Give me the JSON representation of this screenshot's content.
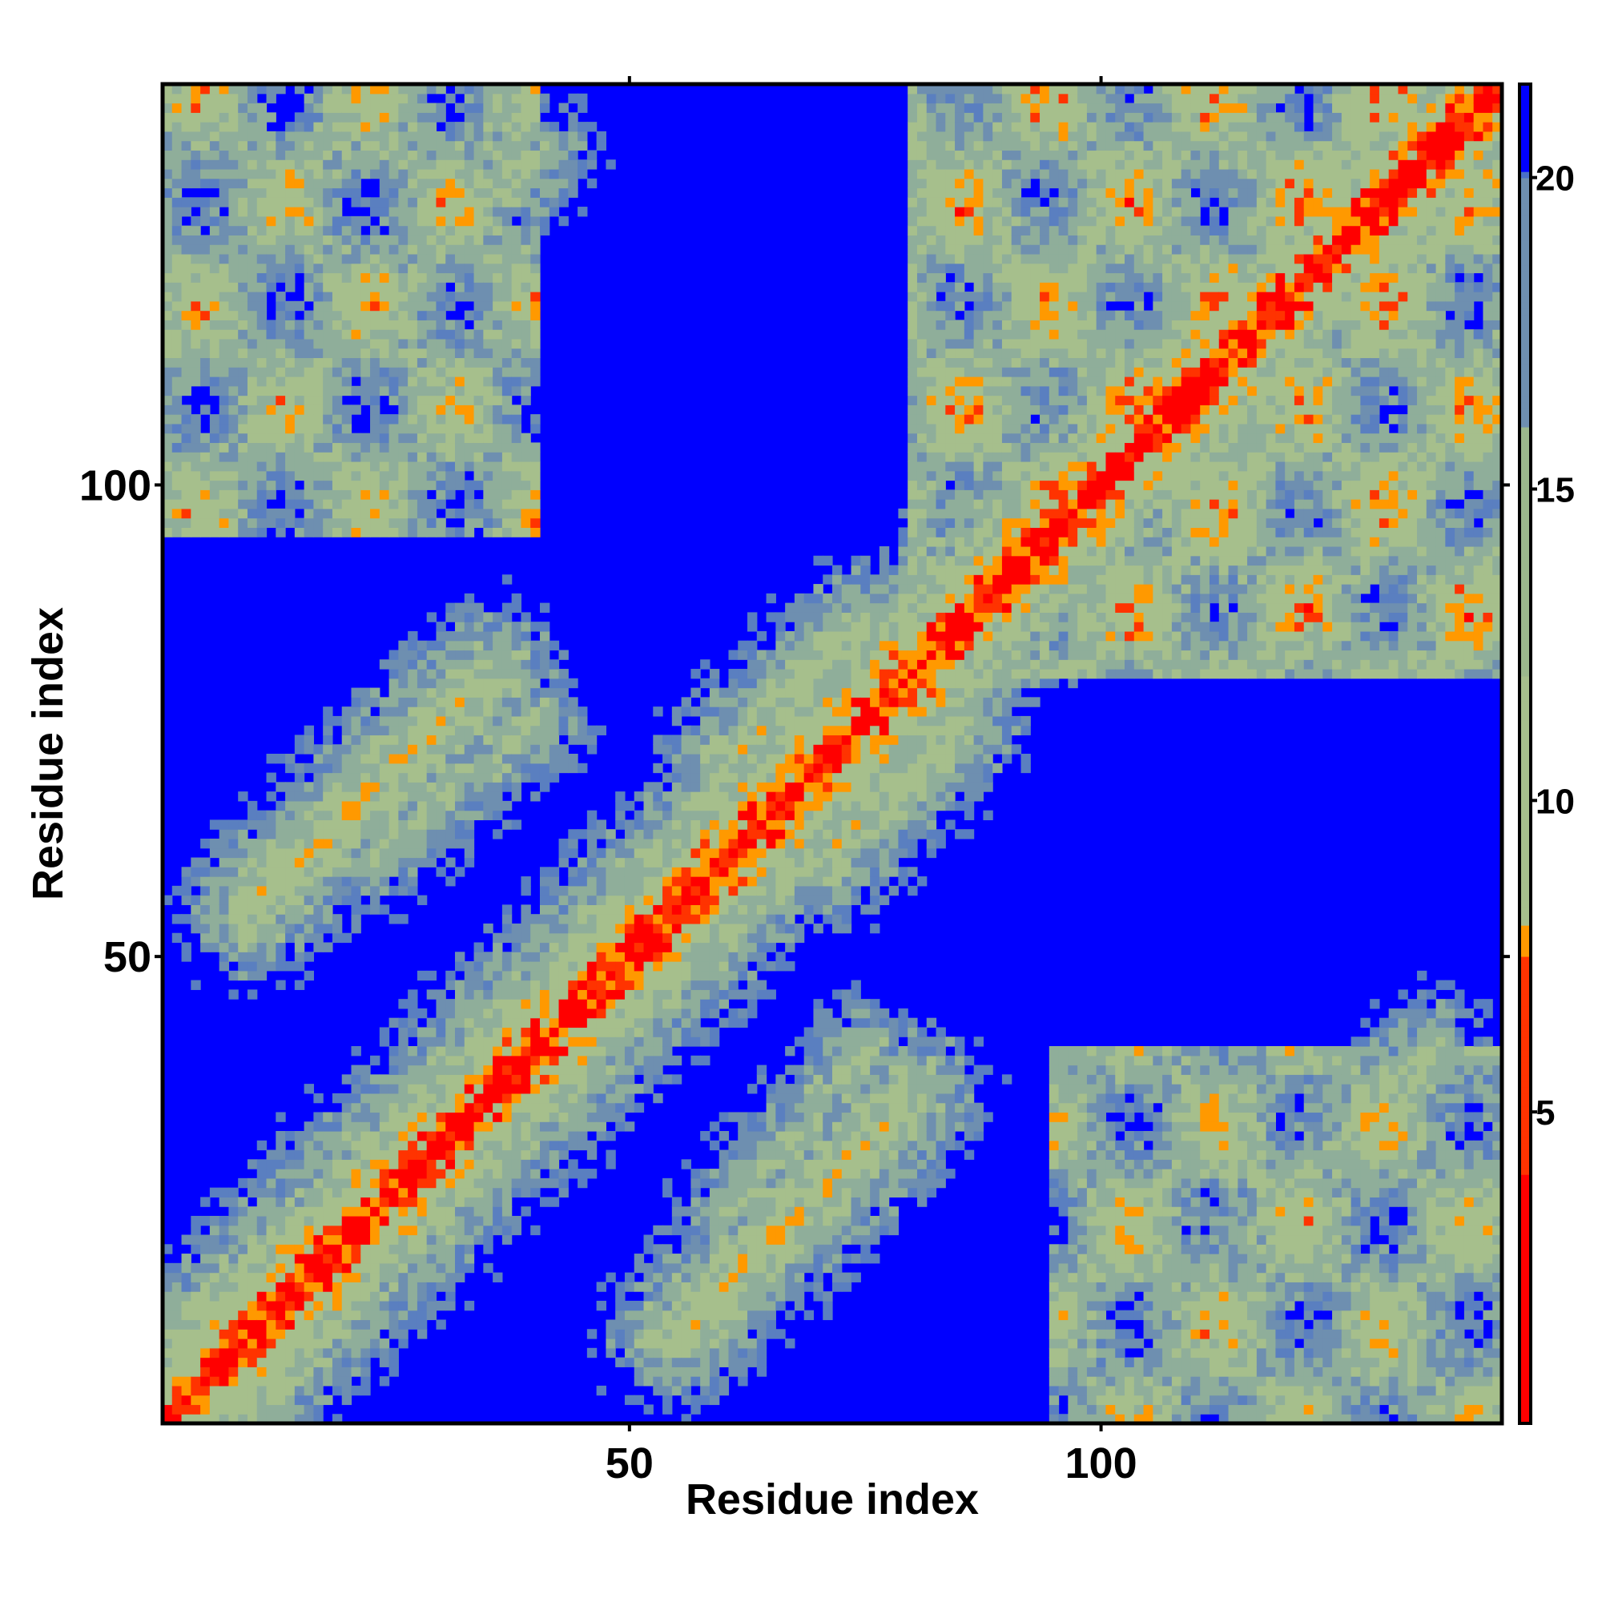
{
  "chart_data": {
    "type": "heatmap",
    "title": "",
    "xlabel": "Residue index",
    "ylabel": "Residue index",
    "n_residues": 142,
    "xlim": [
      1,
      142
    ],
    "ylim": [
      1,
      142
    ],
    "x_ticks": [
      50,
      100
    ],
    "y_ticks": [
      50,
      100
    ],
    "grid": false,
    "legend_position": "right",
    "colorbar": {
      "ticks": [
        5,
        10,
        15,
        20
      ],
      "range": [
        0,
        21.5
      ],
      "color_stops": [
        {
          "value": 0,
          "color": "#ff0000"
        },
        {
          "value": 4,
          "color": "#ff3300"
        },
        {
          "value": 7.5,
          "color": "#ff9900"
        },
        {
          "value": 8,
          "color": "#a6bf8c"
        },
        {
          "value": 12,
          "color": "#9bb88c"
        },
        {
          "value": 16,
          "color": "#6e8fb0"
        },
        {
          "value": 20,
          "color": "#4a70c8"
        },
        {
          "value": 20.01,
          "color": "#0000ff"
        }
      ]
    },
    "matrix_description": "Symmetric residue-residue distance map (distance units); values >= 20 shown as saturated blue.",
    "structure_features": {
      "diagonal_width": 3,
      "contact_bands": [
        {
          "from": [
            10,
            55
          ],
          "to": [
            35,
            80
          ],
          "value": 9
        },
        {
          "from": [
            60,
            70
          ],
          "to": [
            75,
            85
          ],
          "value": 10
        },
        {
          "from": [
            88,
            95
          ],
          "to": [
            125,
            130
          ],
          "value": 11
        },
        {
          "from": [
            22,
            60
          ],
          "to": [
            40,
            75
          ],
          "value": 12
        },
        {
          "from": [
            115,
            20
          ],
          "to": [
            135,
            40
          ],
          "value": 12
        }
      ],
      "far_blocks": [
        {
          "i": [
            1,
            40
          ],
          "j": [
            95,
            142
          ],
          "value": 14
        },
        {
          "i": [
            95,
            142
          ],
          "j": [
            1,
            40
          ],
          "value": 14
        },
        {
          "i": [
            80,
            142
          ],
          "j": [
            80,
            142
          ],
          "value": 13
        }
      ]
    }
  },
  "colors": {
    "background": "#ffffff",
    "frame": "#000000",
    "saturation_blue": "#0000ff",
    "contact_red": "#ff0000",
    "near_orange": "#ff9900",
    "mid_green": "#9bb88c",
    "far_steel": "#6e8fb0"
  }
}
